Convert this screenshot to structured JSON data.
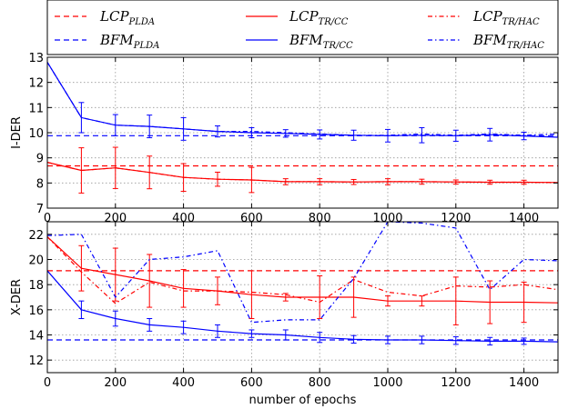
{
  "legend": {
    "entries": [
      {
        "base": "LCP",
        "sub": "PLDA",
        "color": "#ff0000",
        "style": "dashed"
      },
      {
        "base": "BFM",
        "sub": "PLDA",
        "color": "#0000ff",
        "style": "dashed"
      },
      {
        "base": "LCP",
        "sub": "TR/CC",
        "color": "#ff0000",
        "style": "solid"
      },
      {
        "base": "BFM",
        "sub": "TR/CC",
        "color": "#0000ff",
        "style": "solid"
      },
      {
        "base": "LCP",
        "sub": "TR/HAC",
        "color": "#ff0000",
        "style": "dashdot"
      },
      {
        "base": "BFM",
        "sub": "TR/HAC",
        "color": "#0000ff",
        "style": "dashdot"
      }
    ]
  },
  "chart_data": [
    {
      "type": "line",
      "ylabel": "I-DER",
      "xlabel": "",
      "xlim": [
        0,
        1500
      ],
      "ylim": [
        7,
        13
      ],
      "xticks": [
        0,
        200,
        400,
        600,
        800,
        1000,
        1200,
        1400
      ],
      "xtick_labels": [
        "0",
        "200",
        "400",
        "600",
        "800",
        "1000",
        "1200",
        "1400"
      ],
      "yticks": [
        7,
        8,
        9,
        10,
        11,
        12,
        13
      ],
      "ytick_labels": [
        "7",
        "8",
        "9",
        "10",
        "11",
        "12",
        "13"
      ],
      "grid": true,
      "series": [
        {
          "name": "LCP_PLDA",
          "color": "#ff0000",
          "style": "dashed",
          "x": [
            0,
            1500
          ],
          "y": [
            8.68,
            8.68
          ]
        },
        {
          "name": "BFM_PLDA",
          "color": "#0000ff",
          "style": "dashed",
          "x": [
            0,
            1500
          ],
          "y": [
            9.88,
            9.88
          ]
        },
        {
          "name": "LCP_TR/CC",
          "color": "#ff0000",
          "style": "solid",
          "x": [
            0,
            100,
            200,
            300,
            400,
            500,
            600,
            700,
            800,
            900,
            1000,
            1100,
            1200,
            1300,
            1400,
            1500
          ],
          "y": [
            8.82,
            8.5,
            8.6,
            8.42,
            8.22,
            8.15,
            8.12,
            8.05,
            8.05,
            8.04,
            8.05,
            8.05,
            8.04,
            8.03,
            8.03,
            8.02
          ],
          "err": [
            0,
            0.9,
            0.82,
            0.65,
            0.55,
            0.28,
            0.5,
            0.12,
            0.12,
            0.1,
            0.12,
            0.1,
            0.08,
            0.08,
            0.08,
            0
          ]
        },
        {
          "name": "BFM_TR/CC",
          "color": "#0000ff",
          "style": "solid",
          "x": [
            0,
            100,
            200,
            300,
            400,
            500,
            600,
            700,
            800,
            900,
            1000,
            1100,
            1200,
            1300,
            1400,
            1500
          ],
          "y": [
            12.8,
            10.6,
            10.3,
            10.25,
            10.15,
            10.05,
            10.0,
            9.97,
            9.93,
            9.9,
            9.88,
            9.9,
            9.88,
            9.92,
            9.87,
            9.82
          ],
          "err": [
            0,
            0.6,
            0.42,
            0.45,
            0.45,
            0.22,
            0.2,
            0.15,
            0.18,
            0.2,
            0.25,
            0.3,
            0.22,
            0.25,
            0.15,
            0
          ]
        },
        {
          "name": "LCP_TR/HAC",
          "color": "#ff0000",
          "style": "dashdot",
          "x": [
            0,
            100,
            200,
            300,
            400,
            500,
            600,
            700,
            800,
            900,
            1000,
            1100,
            1200,
            1300,
            1400,
            1500
          ],
          "y": [
            8.82,
            8.5,
            8.6,
            8.42,
            8.22,
            8.15,
            8.12,
            8.05,
            8.05,
            8.04,
            8.05,
            8.05,
            8.04,
            8.03,
            8.03,
            8.02
          ]
        },
        {
          "name": "BFM_TR/HAC",
          "color": "#0000ff",
          "style": "dashdot",
          "x": [
            0,
            100,
            200,
            300,
            400,
            500,
            600,
            700,
            800,
            900,
            1000,
            1100,
            1200,
            1300,
            1400,
            1500
          ],
          "y": [
            12.8,
            10.6,
            10.3,
            10.25,
            10.15,
            10.05,
            10.05,
            10.0,
            9.95,
            9.9,
            9.9,
            9.95,
            9.9,
            9.95,
            9.9,
            9.95
          ]
        }
      ]
    },
    {
      "type": "line",
      "ylabel": "X-DER",
      "xlabel": "number of epochs",
      "xlim": [
        0,
        1500
      ],
      "ylim": [
        11,
        23
      ],
      "xticks": [
        0,
        200,
        400,
        600,
        800,
        1000,
        1200,
        1400
      ],
      "xtick_labels": [
        "0",
        "200",
        "400",
        "600",
        "800",
        "1000",
        "1200",
        "1400"
      ],
      "yticks": [
        12,
        14,
        16,
        18,
        20,
        22
      ],
      "ytick_labels": [
        "12",
        "14",
        "16",
        "18",
        "20",
        "22"
      ],
      "grid": true,
      "series": [
        {
          "name": "LCP_PLDA",
          "color": "#ff0000",
          "style": "dashed",
          "x": [
            0,
            1500
          ],
          "y": [
            19.1,
            19.1
          ]
        },
        {
          "name": "BFM_PLDA",
          "color": "#0000ff",
          "style": "dashed",
          "x": [
            0,
            1500
          ],
          "y": [
            13.6,
            13.6
          ]
        },
        {
          "name": "LCP_TR/CC",
          "color": "#ff0000",
          "style": "solid",
          "x": [
            0,
            100,
            200,
            300,
            400,
            500,
            600,
            700,
            800,
            900,
            1000,
            1100,
            1200,
            1300,
            1400,
            1500
          ],
          "y": [
            21.8,
            19.3,
            18.8,
            18.3,
            17.7,
            17.5,
            17.2,
            17.0,
            17.0,
            17.0,
            16.7,
            16.7,
            16.7,
            16.6,
            16.6,
            16.55
          ],
          "err": [
            0,
            1.8,
            2.1,
            2.1,
            1.5,
            1.1,
            1.9,
            0.3,
            1.7,
            1.6,
            0.4,
            0.4,
            1.9,
            1.7,
            1.6,
            0
          ]
        },
        {
          "name": "BFM_TR/CC",
          "color": "#0000ff",
          "style": "solid",
          "x": [
            0,
            100,
            200,
            300,
            400,
            500,
            600,
            700,
            800,
            900,
            1000,
            1100,
            1200,
            1300,
            1400,
            1500
          ],
          "y": [
            19.1,
            16.0,
            15.3,
            14.8,
            14.6,
            14.3,
            14.1,
            14.0,
            13.8,
            13.65,
            13.6,
            13.6,
            13.55,
            13.5,
            13.5,
            13.45
          ],
          "err": [
            0,
            0.7,
            0.6,
            0.5,
            0.5,
            0.5,
            0.3,
            0.4,
            0.4,
            0.3,
            0.3,
            0.3,
            0.3,
            0.3,
            0.25,
            0
          ]
        },
        {
          "name": "LCP_TR/HAC",
          "color": "#ff0000",
          "style": "dashdot",
          "x": [
            0,
            100,
            200,
            300,
            400,
            500,
            600,
            700,
            800,
            900,
            1000,
            1100,
            1200,
            1300,
            1400,
            1500
          ],
          "y": [
            21.8,
            19.0,
            16.5,
            18.2,
            17.5,
            17.5,
            17.4,
            17.2,
            16.6,
            18.4,
            17.4,
            17.1,
            17.9,
            17.8,
            18.0,
            17.6
          ]
        },
        {
          "name": "BFM_TR/HAC",
          "color": "#0000ff",
          "style": "dashdot",
          "x": [
            0,
            100,
            200,
            300,
            400,
            500,
            600,
            700,
            800,
            900,
            1000,
            1100,
            1200,
            1300,
            1400,
            1500
          ],
          "y": [
            21.9,
            22.0,
            17.0,
            20.0,
            20.2,
            20.7,
            15.0,
            15.2,
            15.2,
            18.5,
            23.0,
            22.9,
            22.5,
            17.6,
            20.0,
            19.9
          ]
        }
      ]
    }
  ]
}
